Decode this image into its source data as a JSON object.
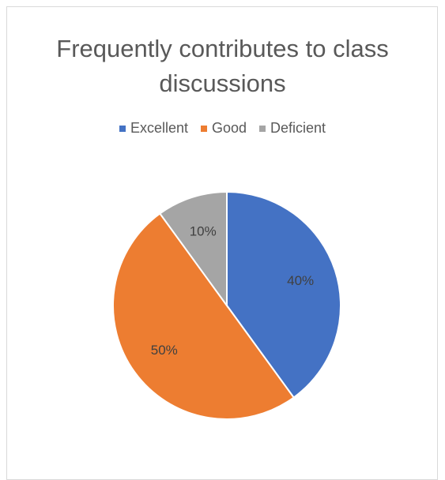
{
  "chart_data": {
    "type": "pie",
    "title": "Frequently contributes to class discussions",
    "categories": [
      "Excellent",
      "Good",
      "Deficient"
    ],
    "values": [
      40,
      50,
      10
    ],
    "value_labels": [
      "40%",
      "50%",
      "10%"
    ],
    "colors": [
      "#4472c4",
      "#ed7d31",
      "#a5a5a5"
    ],
    "legend": "top"
  }
}
